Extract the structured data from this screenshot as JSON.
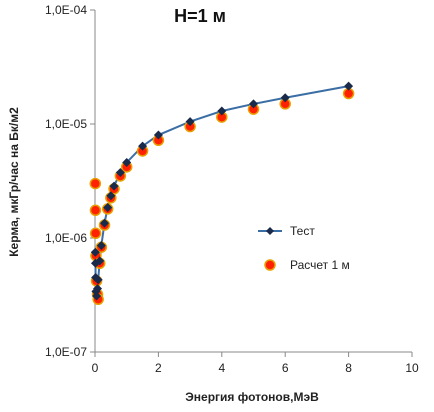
{
  "chart_data": {
    "type": "scatter",
    "title": "H=1 м",
    "xlabel": "Энергия фотонов,МэВ",
    "ylabel": "Керма, мкГр/час на Бк/м2",
    "xlim": [
      0,
      10
    ],
    "ylim": [
      1e-07,
      0.0001
    ],
    "yscale": "log",
    "x_tick_labels": [
      "0",
      "2",
      "4",
      "6",
      "8",
      "10"
    ],
    "y_tick_labels": [
      "1,0E-07",
      "1,0E-06",
      "1,0E-05",
      "1,0E-04"
    ],
    "grid": false,
    "legend_position": "center-right",
    "series": [
      {
        "name": "Тест",
        "style": "line-with-diamonds",
        "color": "#3b6ea5",
        "marker_color": "#1a2a4a",
        "x": [
          0.01,
          0.015,
          0.02,
          0.03,
          0.05,
          0.08,
          0.1,
          0.15,
          0.2,
          0.3,
          0.4,
          0.5,
          0.6,
          0.8,
          1.0,
          1.5,
          2.0,
          3.0,
          4.0,
          5.0,
          6.0,
          8.0
        ],
        "y": [
          7.5e-07,
          6e-07,
          4.5e-07,
          3.4e-07,
          3.1e-07,
          3.6e-07,
          4.3e-07,
          6.3e-07,
          8.6e-07,
          1.35e-06,
          1.85e-06,
          2.35e-06,
          2.85e-06,
          3.75e-06,
          4.6e-06,
          6.4e-06,
          8e-06,
          1.05e-05,
          1.3e-05,
          1.5e-05,
          1.7e-05,
          2.15e-05
        ]
      },
      {
        "name": "Расчет 1 м",
        "style": "circles",
        "color": "#ff2200",
        "edge_color": "#e8a000",
        "x": [
          0.01,
          0.015,
          0.02,
          0.03,
          0.05,
          0.08,
          0.1,
          0.15,
          0.2,
          0.3,
          0.4,
          0.5,
          0.6,
          0.8,
          1.0,
          1.5,
          2.0,
          3.0,
          4.0,
          5.0,
          6.0,
          8.0
        ],
        "y": [
          3e-06,
          1.75e-06,
          1.1e-06,
          7e-07,
          4.2e-07,
          3.2e-07,
          2.9e-07,
          6e-07,
          8.3e-07,
          1.3e-06,
          1.8e-06,
          2.25e-06,
          2.7e-06,
          3.5e-06,
          4.2e-06,
          5.8e-06,
          7.2e-06,
          9.5e-06,
          1.15e-05,
          1.35e-05,
          1.5e-05,
          1.85e-05
        ]
      }
    ]
  }
}
